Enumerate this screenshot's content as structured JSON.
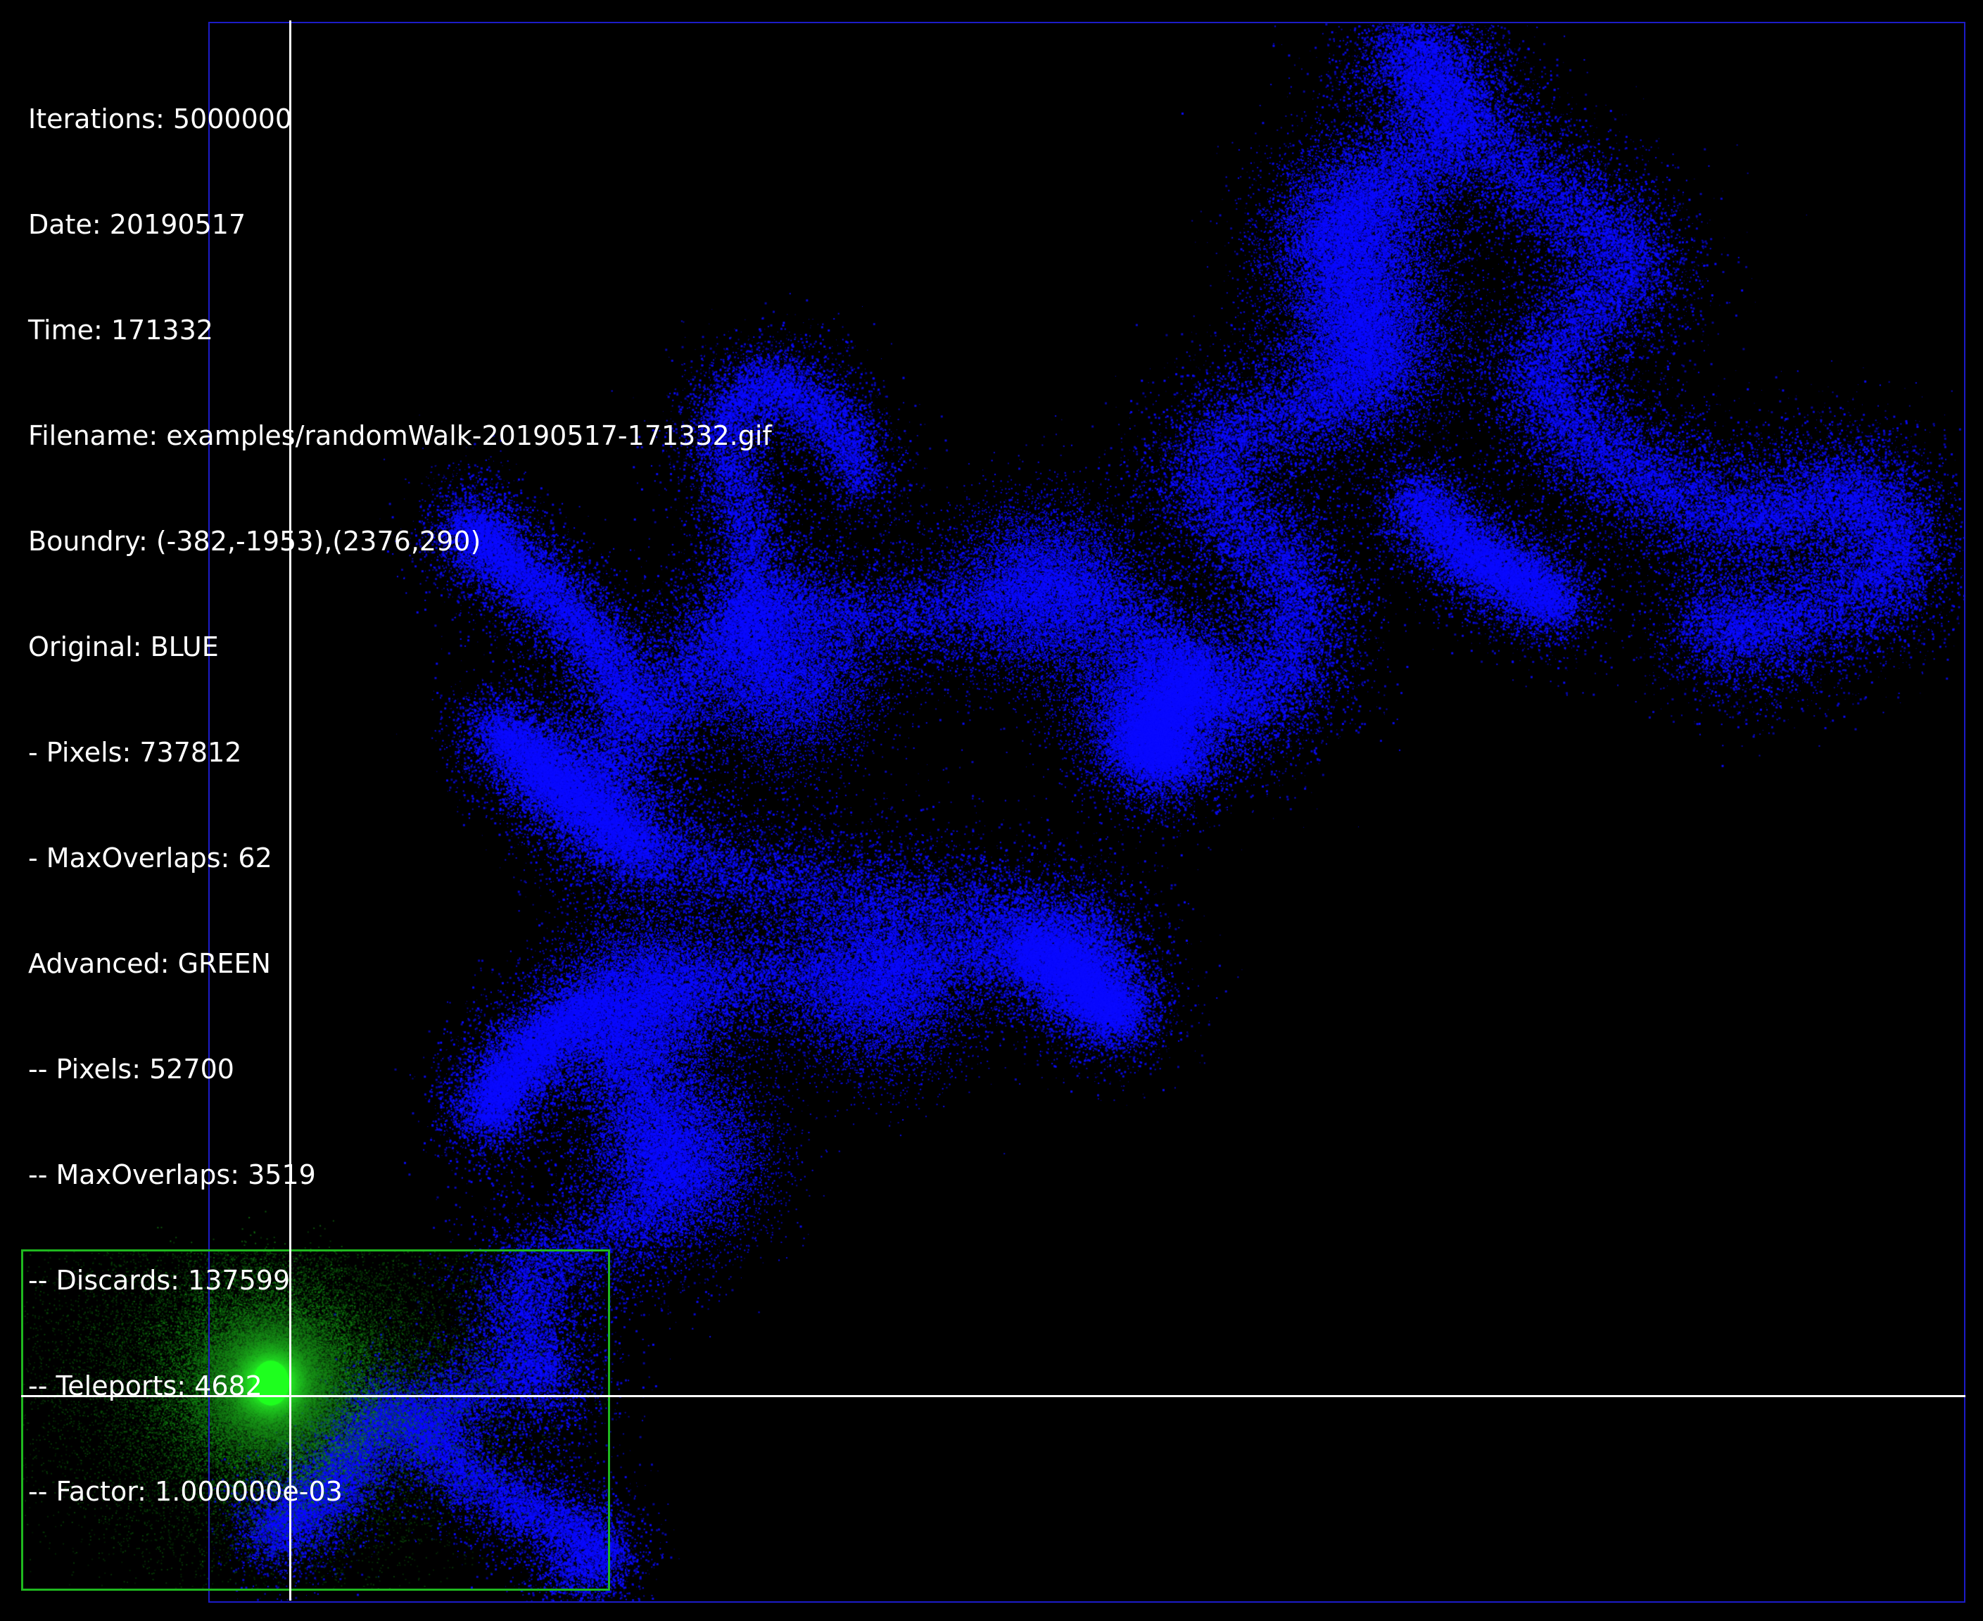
{
  "info": {
    "iterations": "Iterations: 5000000",
    "date": "Date: 20190517",
    "time": "Time: 171332",
    "filename": "Filename: examples/randomWalk-20190517-171332.gif",
    "boundry": "Boundry: (-382,-1953),(2376,290)",
    "original": "Original: BLUE",
    "original_pixels": "- Pixels: 737812",
    "original_max_overlaps": "- MaxOverlaps: 62",
    "advanced": "Advanced: GREEN",
    "advanced_pixels": "-- Pixels: 52700",
    "advanced_max_overlaps": "-- MaxOverlaps: 3519",
    "advanced_discards": "-- Discards: 137599",
    "advanced_teleports": "-- Teleports: 4682",
    "advanced_factor": "-- Factor: 1.000000e-03"
  },
  "colors": {
    "background": "#000000",
    "original_walk": "#0a0aff",
    "advanced_walk": "#1eff1e",
    "advanced_glow": "#0a5a0a",
    "axes": "#ffffff",
    "text": "#ffffff"
  }
}
